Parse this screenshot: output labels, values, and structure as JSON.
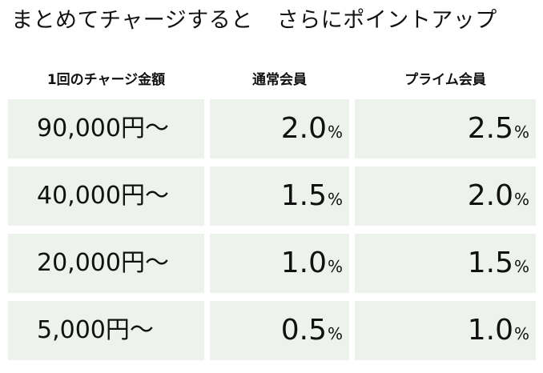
{
  "title": {
    "part1": "まとめてチャージすると",
    "part2": "さらにポイントアップ"
  },
  "headers": {
    "amount": "1回のチャージ金額",
    "regular": "通常会員",
    "prime": "プライム会員"
  },
  "rows": [
    {
      "amount": "90,000円〜",
      "regular": "2.0",
      "prime": "2.5"
    },
    {
      "amount": "40,000円〜",
      "regular": "1.5",
      "prime": "2.0"
    },
    {
      "amount": "20,000円〜",
      "regular": "1.0",
      "prime": "1.5"
    },
    {
      "amount": "5,000円〜",
      "regular": "0.5",
      "prime": "1.0"
    }
  ],
  "unit": "%",
  "colors": {
    "cell_background": "#eef2ec",
    "text": "#111111"
  }
}
